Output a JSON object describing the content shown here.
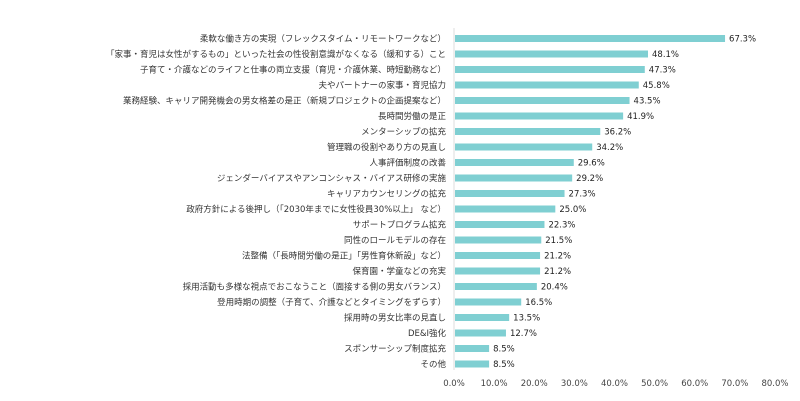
{
  "chart_data": {
    "type": "bar",
    "orientation": "horizontal",
    "categories": [
      "柔軟な働き方の実現（フレックスタイム・リモートワークなど）",
      "「家事・育児は女性がするもの」といった社会の性役割意識がなくなる（緩和する）こと",
      "子育て・介護などのライフと仕事の両立支援（育児・介護休業、時短勤務など）",
      "夫やパートナーの家事・育児協力",
      "業務経験、キャリア開発機会の男女格差の是正（新規プロジェクトの企画提案など）",
      "長時間労働の是正",
      "メンターシップの拡充",
      "管理職の役割やあり方の見直し",
      "人事評価制度の改善",
      "ジェンダーバイアスやアンコンシャス・バイアス研修の実施",
      "キャリアカウンセリングの拡充",
      "政府方針による後押し（「2030年までに女性役員30%以上」 など）",
      "サポートプログラム拡充",
      "同性のロールモデルの存在",
      "法整備（「長時間労働の是正」「男性育休新設」など）",
      "保育園・学童などの充実",
      "採用活動も多様な視点でおこなうこと（面接する側の男女バランス）",
      "登用時期の調整（子育て、介護などとタイミングをずらす）",
      "採用時の男女比率の見直し",
      "DE&I強化",
      "スポンサーシップ制度拡充",
      "その他"
    ],
    "values": [
      67.3,
      48.1,
      47.3,
      45.8,
      43.5,
      41.9,
      36.2,
      34.2,
      29.6,
      29.2,
      27.3,
      25.0,
      22.3,
      21.5,
      21.2,
      21.2,
      20.4,
      16.5,
      13.5,
      12.7,
      8.5,
      8.5
    ],
    "value_labels": [
      "67.3%",
      "48.1%",
      "47.3%",
      "45.8%",
      "43.5%",
      "41.9%",
      "36.2%",
      "34.2%",
      "29.6%",
      "29.2%",
      "27.3%",
      "25.0%",
      "22.3%",
      "21.5%",
      "21.2%",
      "21.2%",
      "20.4%",
      "16.5%",
      "13.5%",
      "12.7%",
      "8.5%",
      "8.5%"
    ],
    "xlim": [
      0,
      80
    ],
    "x_ticks": [
      "0.0%",
      "10.0%",
      "20.0%",
      "30.0%",
      "40.0%",
      "50.0%",
      "60.0%",
      "70.0%",
      "80.0%"
    ],
    "grid": false,
    "legend": "none",
    "bar_color": "#7fcfd2"
  }
}
